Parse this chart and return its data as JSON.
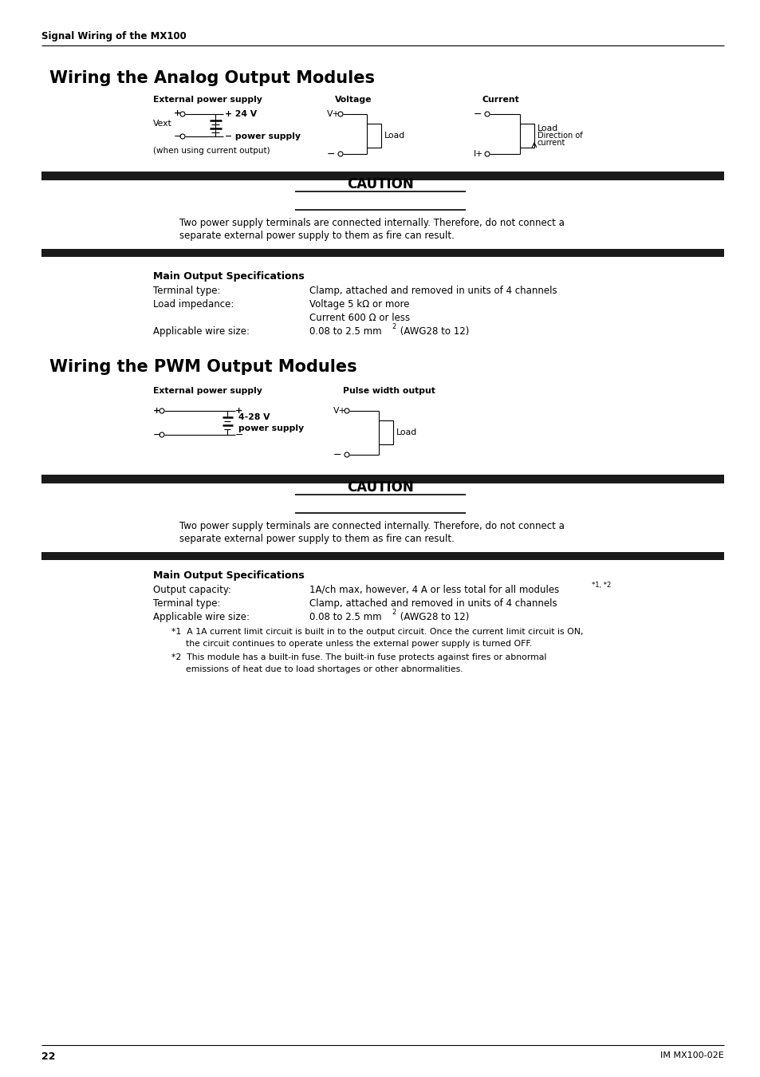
{
  "page_title": "Signal Wiring of the MX100",
  "section1_title": "Wiring the Analog Output Modules",
  "section2_title": "Wiring the PWM Output Modules",
  "caution_text_line1": "Two power supply terminals are connected internally. Therefore, do not connect a",
  "caution_text_line2": "separate external power supply to them as fire can result.",
  "analog_specs_title": "Main Output Specifications",
  "pwm_specs_title": "Main Output Specifications",
  "page_number": "22",
  "page_ref": "IM MX100-02E",
  "bg_color": "#ffffff",
  "bar_color": "#1a1a1a"
}
